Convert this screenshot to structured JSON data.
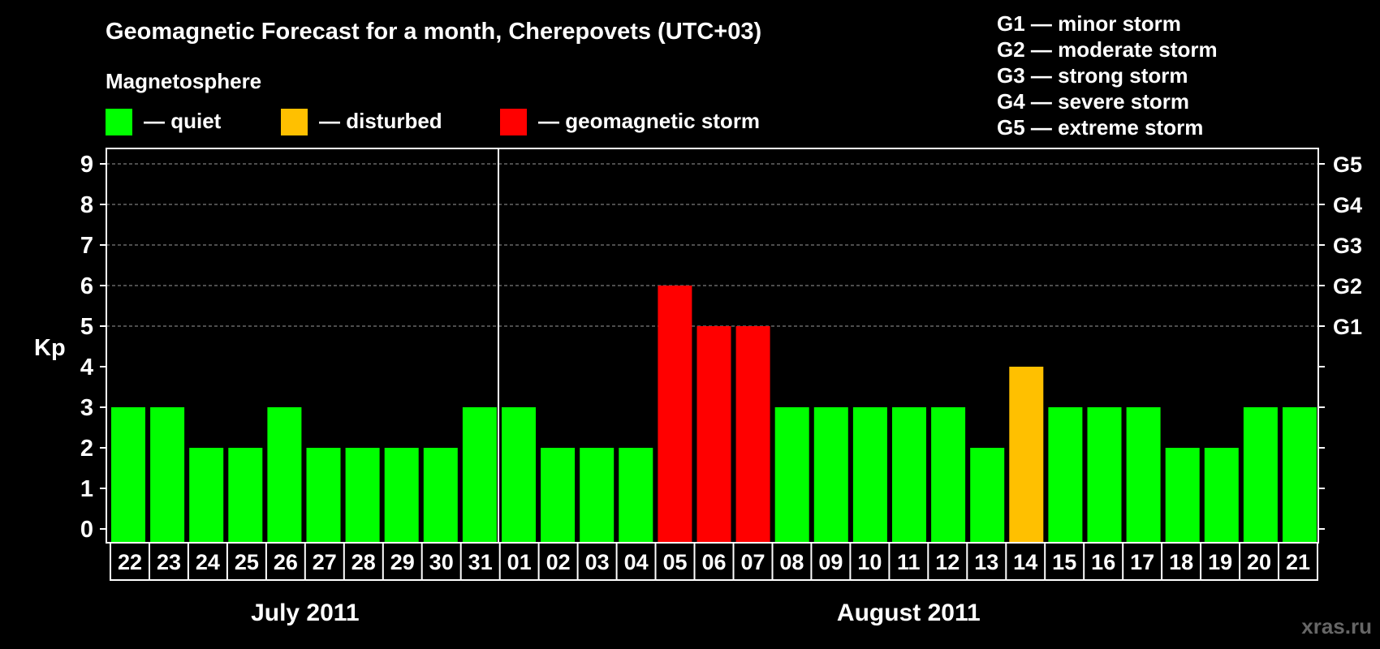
{
  "chart_data": {
    "type": "bar",
    "title": "Geomagnetic Forecast for a month, Cherepovets (UTC+03)",
    "subtitle": "Magnetosphere",
    "ylabel": "Kp",
    "ylim": [
      0,
      9
    ],
    "yticks": [
      "0",
      "1",
      "2",
      "3",
      "4",
      "5",
      "6",
      "7",
      "8",
      "9"
    ],
    "g_ticks": [
      {
        "kp": 5,
        "label": "G1"
      },
      {
        "kp": 6,
        "label": "G2"
      },
      {
        "kp": 7,
        "label": "G3"
      },
      {
        "kp": 8,
        "label": "G4"
      },
      {
        "kp": 9,
        "label": "G5"
      }
    ],
    "legend": [
      {
        "label": "— quiet",
        "color": "#00ff00"
      },
      {
        "label": "— disturbed",
        "color": "#ffc000"
      },
      {
        "label": "— geomagnetic storm",
        "color": "#ff0000"
      }
    ],
    "scale_notes": [
      "G1 — minor storm",
      "G2 — moderate storm",
      "G3 — strong storm",
      "G4 — severe storm",
      "G5 — extreme storm"
    ],
    "months": [
      {
        "label": "July 2011",
        "days": 10
      },
      {
        "label": "August 2011",
        "days": 21
      }
    ],
    "categories": [
      "22",
      "23",
      "24",
      "25",
      "26",
      "27",
      "28",
      "29",
      "30",
      "31",
      "01",
      "02",
      "03",
      "04",
      "05",
      "06",
      "07",
      "08",
      "09",
      "10",
      "11",
      "12",
      "13",
      "14",
      "15",
      "16",
      "17",
      "18",
      "19",
      "20",
      "21"
    ],
    "values": [
      3,
      3,
      2,
      2,
      3,
      2,
      2,
      2,
      2,
      3,
      3,
      2,
      2,
      2,
      6,
      5,
      5,
      3,
      3,
      3,
      3,
      3,
      2,
      4,
      3,
      3,
      3,
      2,
      2,
      3,
      3
    ],
    "colors": {
      "quiet": "#00ff00",
      "disturbed": "#ffc000",
      "storm": "#ff0000"
    },
    "grid": true
  },
  "watermark": "xras.ru"
}
